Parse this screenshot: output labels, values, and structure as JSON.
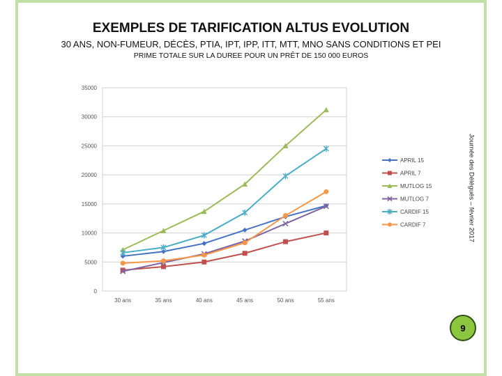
{
  "slide": {
    "title": "EXEMPLES DE TARIFICATION ALTUS EVOLUTION",
    "subtitle": "30 ANS, NON-FUMEUR, DÉCÈS, PTIA, IPT, IPP, ITT, MTT, MNO SANS CONDITIONS ET PEI",
    "subtitle2": "PRIME TOTALE SUR LA DUREE POUR UN PRÊT DE 150 000 EUROS",
    "side_text": "Journée des Délégués – février 2017",
    "page_number": "9",
    "accent_color": "#8cc63f"
  },
  "chart_data": {
    "type": "line",
    "categories": [
      "30 ans",
      "35 ans",
      "40 ans",
      "45 ans",
      "50 ans",
      "55 ans"
    ],
    "ylim": [
      0,
      35000
    ],
    "yticks": [
      0,
      5000,
      10000,
      15000,
      20000,
      25000,
      30000,
      35000
    ],
    "grid": true,
    "legend_position": "right",
    "series": [
      {
        "name": "APRIL 15",
        "color": "#4472c4",
        "marker": "diamond",
        "values": [
          6000,
          6800,
          8200,
          10500,
          12800,
          14700
        ]
      },
      {
        "name": "APRIL 7",
        "color": "#c0504d",
        "marker": "square",
        "values": [
          3600,
          4200,
          5000,
          6500,
          8500,
          10000
        ]
      },
      {
        "name": "MUTLOG 15",
        "color": "#9bbb59",
        "marker": "triangle",
        "values": [
          7100,
          10400,
          13700,
          18400,
          25000,
          31200
        ]
      },
      {
        "name": "MUTLOG 7",
        "color": "#8064a2",
        "marker": "x",
        "values": [
          3400,
          4900,
          6400,
          8600,
          11600,
          14600
        ]
      },
      {
        "name": "CARDIF 15",
        "color": "#4bacc6",
        "marker": "star",
        "values": [
          6600,
          7500,
          9600,
          13500,
          19800,
          24500
        ]
      },
      {
        "name": "CARDIF 7",
        "color": "#f79646",
        "marker": "circle",
        "values": [
          4800,
          5200,
          6200,
          8300,
          13000,
          17100
        ]
      }
    ]
  }
}
